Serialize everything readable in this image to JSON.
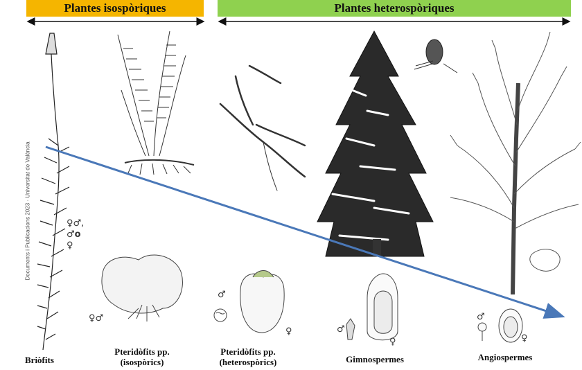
{
  "headers": {
    "isosporic": "Plantes isospòriques",
    "heterosporic": "Plantes heterospòriques"
  },
  "side_text": "Documents i Publicacions 2023 · Universitat de València",
  "labels": {
    "briofits": "Briòfits",
    "pter_iso_line1": "Pteridòfits pp.",
    "pter_iso_line2": "(isospòrics)",
    "pter_het_line1": "Pteridòfits pp.",
    "pter_het_line2": "(heterospòrics)",
    "gimnospermes": "Gimnospermes",
    "angiospermes": "Angiospermes"
  },
  "symbols": {
    "moss_a": "♀♂,",
    "moss_b": "♂",
    "moss_b_suffix": "o",
    "moss_c": "♀",
    "pter_iso": "♀♂",
    "pter_het_male": "♂",
    "pter_het_female": "♀",
    "gimno_male": "♂",
    "gimno_female": "♀",
    "angio_male": "♂",
    "angio_female": "♀"
  },
  "colors": {
    "isosporic_band": "#f5b500",
    "heterosporic_band": "#8fd14f",
    "trend_arrow": "#4a78b8"
  }
}
